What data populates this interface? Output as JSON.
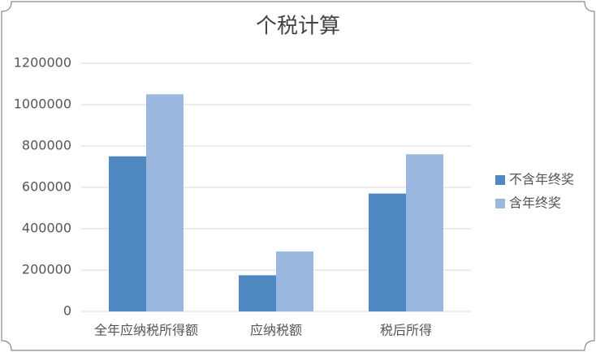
{
  "chart_data": {
    "type": "bar",
    "title": "个税计算",
    "categories": [
      "全年应纳税所得额",
      "应纳税额",
      "税后所得"
    ],
    "series": [
      {
        "name": "不含年终奖",
        "color": "#4f88c0",
        "values": [
          750000,
          175000,
          570000
        ]
      },
      {
        "name": "含年终奖",
        "color": "#9ab8df",
        "values": [
          1050000,
          290000,
          760000
        ]
      }
    ],
    "ylim": [
      0,
      1200000
    ],
    "yticks": [
      0,
      200000,
      400000,
      600000,
      800000,
      1000000,
      1200000
    ],
    "grid": true,
    "legend": "right"
  }
}
